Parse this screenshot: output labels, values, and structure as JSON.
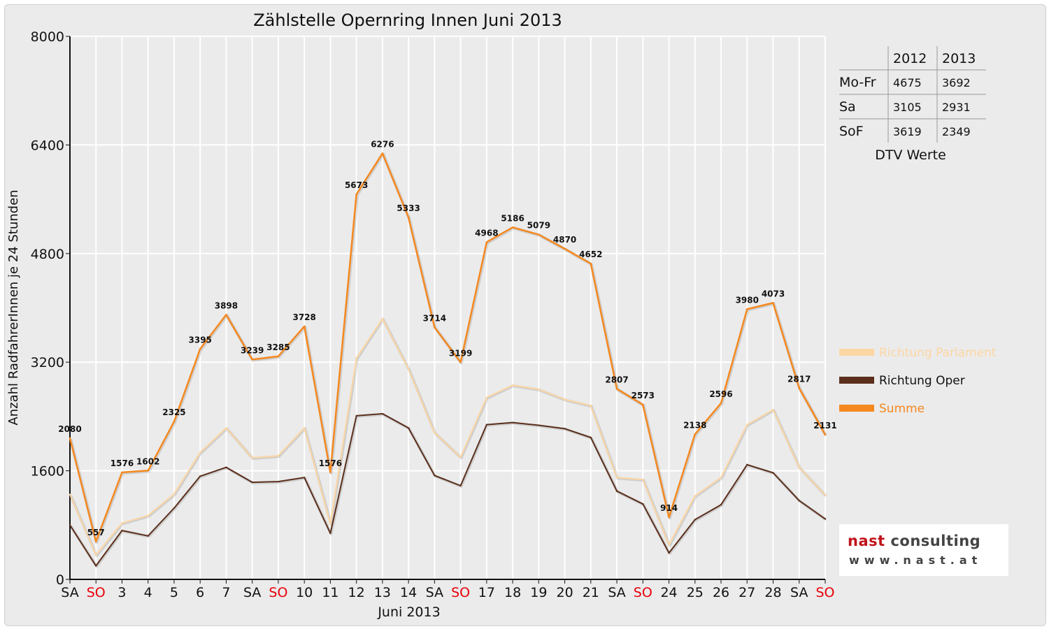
{
  "chart_data": {
    "type": "line",
    "title": "Zählstelle Opernring Innen Juni 2013",
    "xlabel": "Juni 2013",
    "ylabel": "Anzahl RadfahrerInnen je 24 Stunden",
    "ylim": [
      0,
      8000
    ],
    "yticks": [
      "0",
      "1600",
      "3200",
      "4800",
      "6400",
      "8000"
    ],
    "grid": true,
    "legend_position": "right",
    "categories": [
      "SA",
      "SO",
      "3",
      "4",
      "5",
      "6",
      "7",
      "SA",
      "SO",
      "10",
      "11",
      "12",
      "13",
      "14",
      "SA",
      "SO",
      "17",
      "18",
      "19",
      "20",
      "21",
      "SA",
      "SO",
      "24",
      "25",
      "26",
      "27",
      "28",
      "SA",
      "SO"
    ],
    "weekend_color": "#e8000b",
    "series": [
      {
        "name": "Richtung Parlament",
        "color": "#fcd6a3",
        "values": [
          1250,
          360,
          830,
          940,
          1260,
          1870,
          2230,
          1790,
          1820,
          2230,
          820,
          3260,
          3840,
          3100,
          2160,
          1800,
          2680,
          2860,
          2800,
          2650,
          2560,
          1500,
          1470,
          510,
          1230,
          1500,
          2280,
          2500,
          1650,
          1240
        ]
      },
      {
        "name": "Richtung Oper",
        "color": "#5b2f1c",
        "values": [
          800,
          200,
          720,
          640,
          1050,
          1520,
          1650,
          1430,
          1440,
          1500,
          680,
          2410,
          2440,
          2230,
          1530,
          1380,
          2280,
          2310,
          2270,
          2220,
          2090,
          1300,
          1110,
          390,
          880,
          1100,
          1690,
          1570,
          1160,
          890
        ]
      },
      {
        "name": "Summe",
        "color": "#f5881f",
        "values": [
          2080,
          557,
          1576,
          1602,
          2325,
          3395,
          3898,
          3239,
          3285,
          3728,
          1576,
          5673,
          6276,
          5333,
          3714,
          3199,
          4968,
          5186,
          5079,
          4870,
          4652,
          2807,
          2573,
          914,
          2138,
          2596,
          3980,
          4073,
          2817,
          2131
        ]
      }
    ],
    "data_labels": [
      "2080",
      "557",
      "1576",
      "1602",
      "2325",
      "3395",
      "3898",
      "3239",
      "3285",
      "3728",
      "1576",
      "5673",
      "6276",
      "5333",
      "3714",
      "3199",
      "4968",
      "5186",
      "5079",
      "4870",
      "4652",
      "2807",
      "2573",
      "914",
      "2138",
      "2596",
      "3980",
      "4073",
      "2817",
      "2131"
    ]
  },
  "dtv_table": {
    "caption": "DTV Werte",
    "headers": [
      "",
      "2012",
      "2013"
    ],
    "rows": [
      [
        "Mo-Fr",
        "4675",
        "3692"
      ],
      [
        "Sa",
        "3105",
        "2931"
      ],
      [
        "SoF",
        "3619",
        "2349"
      ]
    ]
  },
  "logo": {
    "name_red": "nast",
    "name_rest": " consulting",
    "url": "www.nast.at"
  }
}
